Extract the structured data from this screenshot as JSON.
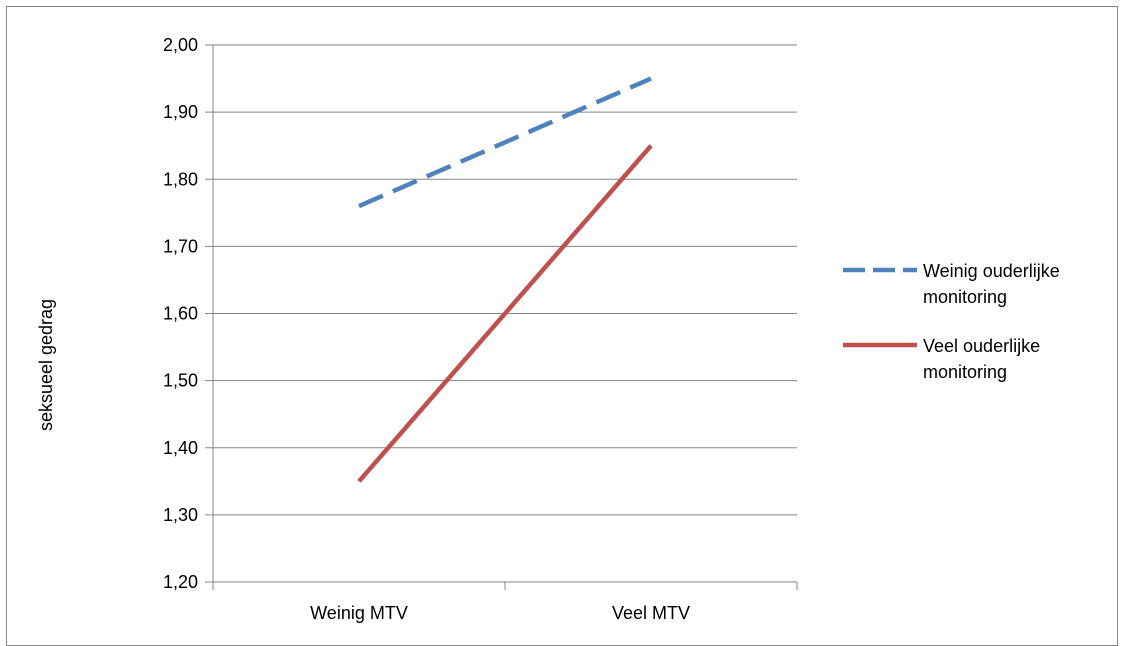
{
  "chart_data": {
    "type": "line",
    "categories": [
      "Weinig MTV",
      "Veel MTV"
    ],
    "series": [
      {
        "name": "Weinig ouderlijke monitoring",
        "name_lines": [
          "Weinig ouderlijke",
          "monitoring"
        ],
        "values": [
          1.76,
          1.95
        ],
        "color": "#4F81BD",
        "dash": "dashed"
      },
      {
        "name": "Veel ouderlijke monitoring",
        "name_lines": [
          "Veel ouderlijke",
          "monitoring"
        ],
        "values": [
          1.35,
          1.85
        ],
        "color": "#C0504D",
        "dash": "solid"
      }
    ],
    "ylabel": "seksueel  gedrag",
    "ylim": [
      1.2,
      2.0
    ],
    "yticks": [
      "1,20",
      "1,30",
      "1,40",
      "1,50",
      "1,60",
      "1,70",
      "1,80",
      "1,90",
      "2,00"
    ],
    "grid": true,
    "legend": "right"
  }
}
